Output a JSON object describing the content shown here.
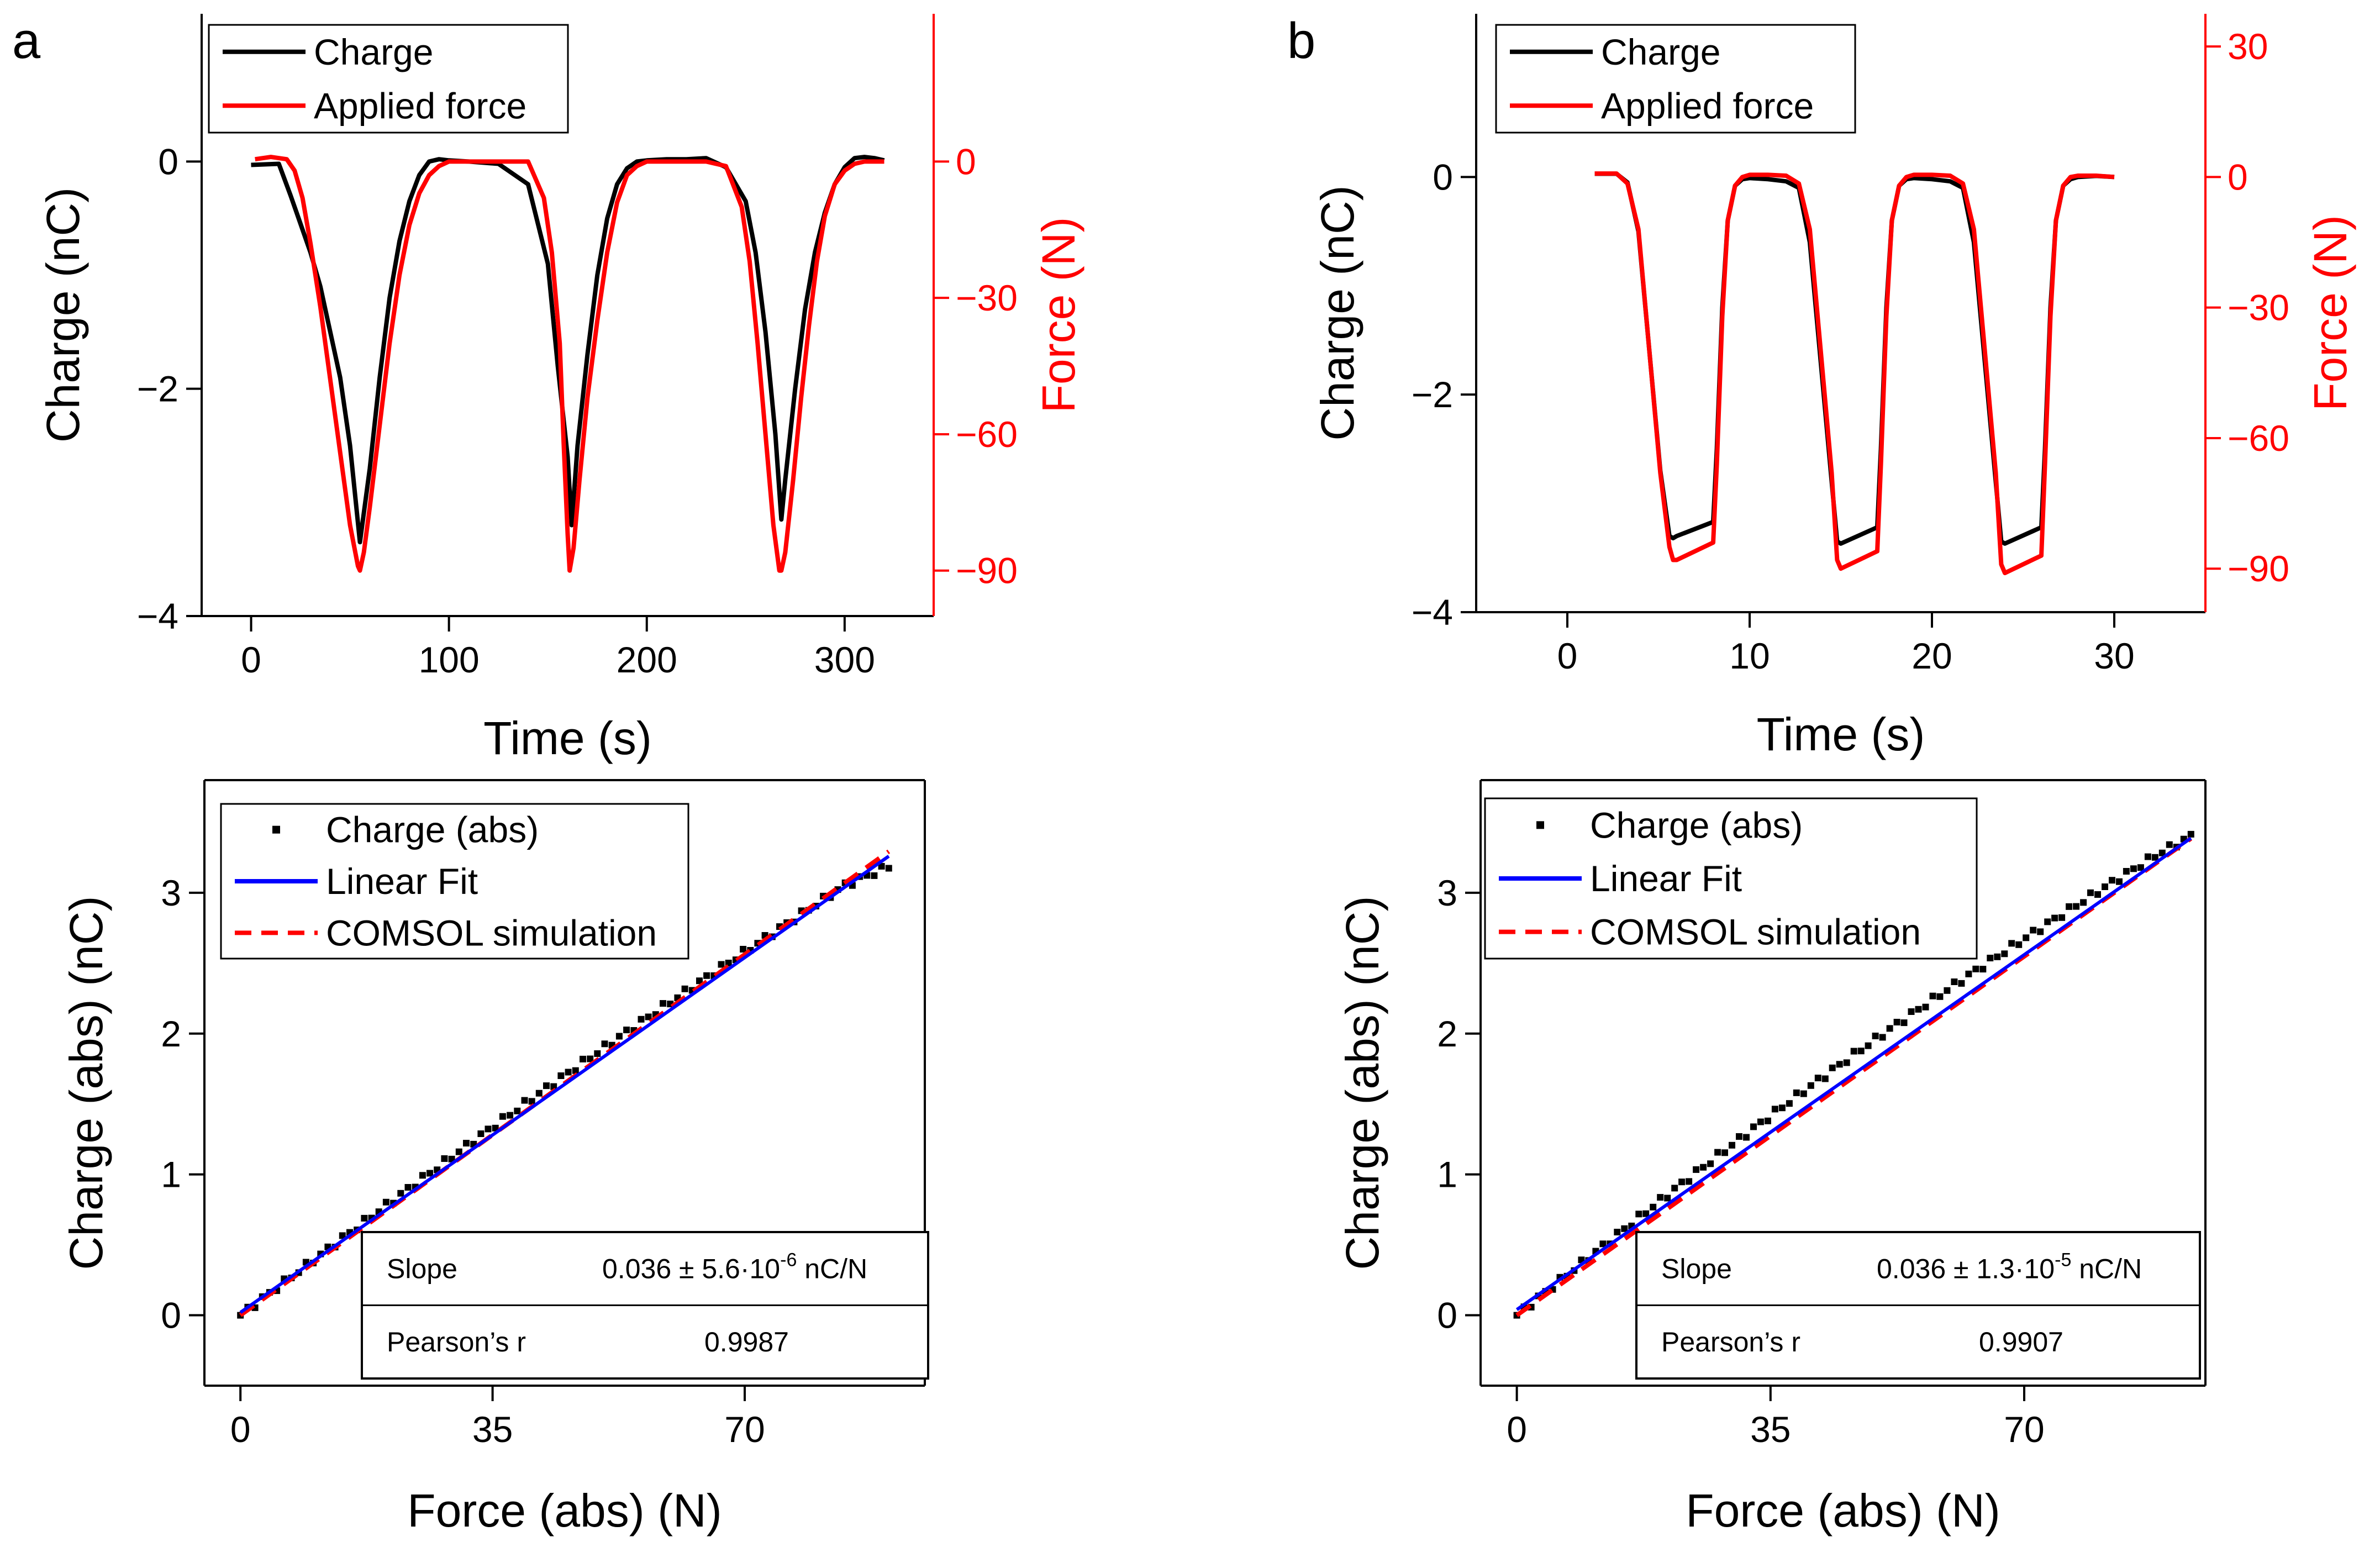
{
  "panel_labels": [
    "a",
    "b"
  ],
  "colors": {
    "charge": "#000000",
    "force": "#ff0000",
    "fit": "#0000ff",
    "sim": "#ff0000",
    "axis": "#000000"
  },
  "chart_data": [
    {
      "id": "a_top",
      "type": "line",
      "panel": "a",
      "xlabel": "Time (s)",
      "ylabel": "Charge (nC)",
      "y2label": "Force (N)",
      "xlim": [
        -25,
        345
      ],
      "ylim": [
        -4,
        1.3
      ],
      "y2lim": [
        -100,
        32.5
      ],
      "xticks": [
        0,
        100,
        200,
        300
      ],
      "yticks": [
        -4,
        -2,
        0
      ],
      "y2ticks": [
        0,
        -30,
        -60,
        -90
      ],
      "legend": {
        "position": "top-left",
        "entries": [
          "Charge",
          "Applied force"
        ]
      },
      "series": [
        {
          "name": "Charge",
          "axis": "left",
          "color": "#000000",
          "x": [
            0,
            14,
            20,
            25,
            30,
            35,
            40,
            45,
            50,
            55,
            60,
            65,
            70,
            75,
            80,
            85,
            90,
            95,
            100,
            110,
            125,
            140,
            150,
            155,
            160,
            162,
            165,
            170,
            175,
            180,
            185,
            190,
            195,
            200,
            210,
            220,
            230,
            240,
            250,
            255,
            260,
            265,
            268,
            270,
            275,
            280,
            285,
            290,
            295,
            300,
            305,
            310,
            315,
            320
          ],
          "y": [
            -0.03,
            -0.02,
            -0.3,
            -0.55,
            -0.8,
            -1.1,
            -1.5,
            -1.9,
            -2.5,
            -3.35,
            -2.7,
            -1.9,
            -1.2,
            -0.7,
            -0.35,
            -0.12,
            0.0,
            0.02,
            0.01,
            0.0,
            -0.02,
            -0.2,
            -0.9,
            -1.8,
            -2.6,
            -3.2,
            -2.5,
            -1.7,
            -1.0,
            -0.5,
            -0.2,
            -0.06,
            0.0,
            0.01,
            0.02,
            0.02,
            0.03,
            -0.05,
            -0.35,
            -0.8,
            -1.5,
            -2.4,
            -3.15,
            -2.8,
            -2.0,
            -1.3,
            -0.8,
            -0.45,
            -0.2,
            -0.05,
            0.03,
            0.04,
            0.03,
            0.01
          ]
        },
        {
          "name": "Applied force",
          "axis": "right",
          "color": "#ff0000",
          "x": [
            2,
            10,
            18,
            22,
            26,
            30,
            35,
            40,
            45,
            50,
            54,
            55,
            57,
            60,
            65,
            70,
            75,
            80,
            85,
            90,
            95,
            100,
            110,
            125,
            140,
            148,
            152,
            156,
            158,
            160,
            161,
            163,
            166,
            170,
            175,
            180,
            185,
            190,
            195,
            200,
            210,
            220,
            230,
            240,
            248,
            252,
            256,
            260,
            264,
            267,
            268,
            270,
            274,
            278,
            282,
            286,
            290,
            295,
            300,
            305,
            310,
            315,
            320
          ],
          "y": [
            0.5,
            1.0,
            0.5,
            -2,
            -8,
            -18,
            -32,
            -48,
            -64,
            -80,
            -89,
            -90,
            -86,
            -76,
            -58,
            -40,
            -25,
            -14,
            -7,
            -3,
            -1,
            0,
            0,
            0,
            0,
            -8,
            -20,
            -40,
            -62,
            -82,
            -90,
            -85,
            -70,
            -52,
            -35,
            -20,
            -9,
            -3,
            -1,
            0,
            0,
            0,
            0,
            -1,
            -10,
            -22,
            -40,
            -60,
            -80,
            -90,
            -90,
            -86,
            -70,
            -52,
            -36,
            -22,
            -12,
            -5,
            -2,
            -0.5,
            0,
            0,
            0
          ]
        }
      ]
    },
    {
      "id": "b_top",
      "type": "line",
      "panel": "b",
      "xlabel": "Time (s)",
      "ylabel": "Charge (nC)",
      "y2label": "Force (N)",
      "xlim": [
        -5,
        35
      ],
      "ylim": [
        -4,
        1.5
      ],
      "y2lim": [
        -100,
        37.5
      ],
      "xticks": [
        0,
        10,
        20,
        30
      ],
      "yticks": [
        -4,
        -2,
        0
      ],
      "y2ticks": [
        30,
        0,
        -30,
        -60,
        -90
      ],
      "legend": {
        "position": "top-left",
        "entries": [
          "Charge",
          "Applied force"
        ]
      },
      "series": [
        {
          "name": "Charge",
          "axis": "left",
          "color": "#000000",
          "x": [
            1.5,
            2.7,
            3.3,
            3.9,
            4.5,
            5.1,
            5.6,
            5.8,
            6.0,
            8.0,
            8.2,
            8.5,
            8.8,
            9.2,
            9.6,
            10,
            11,
            12,
            12.7,
            13.3,
            13.9,
            14.5,
            14.8,
            15.0,
            17.0,
            17.2,
            17.5,
            17.8,
            18.2,
            18.6,
            19,
            20,
            21,
            21.7,
            22.3,
            22.9,
            23.5,
            23.8,
            24.0,
            26.0,
            26.2,
            26.5,
            26.8,
            27.2,
            27.6,
            28,
            29,
            30
          ],
          "y": [
            0.03,
            0.03,
            -0.05,
            -0.5,
            -1.6,
            -2.7,
            -3.3,
            -3.32,
            -3.3,
            -3.17,
            -2.5,
            -1.2,
            -0.4,
            -0.08,
            -0.02,
            -0.01,
            -0.02,
            -0.04,
            -0.1,
            -0.6,
            -1.7,
            -2.8,
            -3.35,
            -3.37,
            -3.22,
            -2.5,
            -1.2,
            -0.4,
            -0.08,
            -0.02,
            -0.01,
            -0.02,
            -0.04,
            -0.1,
            -0.6,
            -1.7,
            -2.8,
            -3.35,
            -3.37,
            -3.22,
            -2.5,
            -1.2,
            -0.4,
            -0.08,
            -0.02,
            0.0,
            0.01,
            0.0
          ]
        },
        {
          "name": "Applied force",
          "axis": "right",
          "color": "#ff0000",
          "x": [
            1.5,
            2.7,
            3.3,
            3.9,
            4.5,
            5.1,
            5.6,
            5.8,
            6.0,
            8.0,
            8.2,
            8.5,
            8.8,
            9.2,
            9.6,
            10,
            11,
            12,
            12.7,
            13.3,
            13.9,
            14.5,
            14.8,
            15.0,
            17.0,
            17.2,
            17.5,
            17.8,
            18.2,
            18.6,
            19,
            20,
            21,
            21.7,
            22.3,
            22.9,
            23.5,
            23.8,
            24.0,
            26.0,
            26.2,
            26.5,
            26.8,
            27.2,
            27.6,
            28,
            29,
            30
          ],
          "y": [
            0.8,
            0.8,
            -1.5,
            -12,
            -40,
            -68,
            -85,
            -88,
            -88,
            -84,
            -66,
            -32,
            -10,
            -2,
            0,
            0.5,
            0.5,
            0.3,
            -1.5,
            -12,
            -40,
            -68,
            -88,
            -90,
            -86,
            -66,
            -32,
            -10,
            -2,
            0,
            0.5,
            0.5,
            0.3,
            -1.5,
            -12,
            -40,
            -68,
            -89,
            -91,
            -87,
            -66,
            -32,
            -10,
            -2,
            0,
            0.3,
            0.3,
            0
          ]
        }
      ]
    },
    {
      "id": "a_bottom",
      "type": "scatter",
      "panel": "a",
      "xlabel": "Force (abs) (N)",
      "ylabel": "Charge (abs) (nC)",
      "xlim": [
        -5,
        95
      ],
      "ylim": [
        -0.5,
        3.8
      ],
      "xticks": [
        0,
        35,
        70
      ],
      "yticks": [
        0,
        1,
        2,
        3
      ],
      "legend": {
        "position": "top-left",
        "entries": [
          "Charge (abs)",
          "Linear Fit",
          "COMSOL simulation"
        ]
      },
      "scatter": {
        "name": "Charge (abs)",
        "x_max": 90,
        "points": 90,
        "base_slope": 0.0362,
        "bump": 0.075,
        "droop_start": 84,
        "droop_rate": 0.012
      },
      "fit": {
        "name": "Linear Fit",
        "slope": 0.036,
        "intercept": 0.02,
        "x": [
          0,
          90
        ]
      },
      "sim": {
        "name": "COMSOL simulation",
        "slope": 0.0366,
        "intercept": 0.0,
        "x": [
          0,
          90
        ]
      },
      "stats": {
        "slope_label": "Slope",
        "slope_value": "0.036 ± 5.6·10",
        "slope_exp": "-6",
        "slope_unit": " nC/N",
        "r_label": "Pearson’s r",
        "r_value": "0.9987"
      }
    },
    {
      "id": "b_bottom",
      "type": "scatter",
      "panel": "b",
      "xlabel": "Force (abs) (N)",
      "ylabel": "Charge (abs) (nC)",
      "xlim": [
        -5,
        95
      ],
      "ylim": [
        -0.5,
        3.8
      ],
      "xticks": [
        0,
        35,
        70
      ],
      "yticks": [
        0,
        1,
        2,
        3
      ],
      "legend": {
        "position": "top-left",
        "entries": [
          "Charge (abs)",
          "Linear Fit",
          "COMSOL simulation"
        ]
      },
      "scatter": {
        "name": "Charge (abs)",
        "x_max": 93,
        "points": 95,
        "base_slope": 0.0368,
        "bump": 0.14,
        "droop_start": 88,
        "droop_rate": 0.004
      },
      "fit": {
        "name": "Linear Fit",
        "slope": 0.036,
        "intercept": 0.04,
        "x": [
          0,
          93
        ]
      },
      "sim": {
        "name": "COMSOL simulation",
        "slope": 0.0364,
        "intercept": 0.0,
        "x": [
          0,
          93
        ]
      },
      "stats": {
        "slope_label": "Slope",
        "slope_value": "0.036 ± 1.3·10",
        "slope_exp": "-5",
        "slope_unit": " nC/N",
        "r_label": "Pearson’s r",
        "r_value": "0.9907"
      }
    }
  ]
}
